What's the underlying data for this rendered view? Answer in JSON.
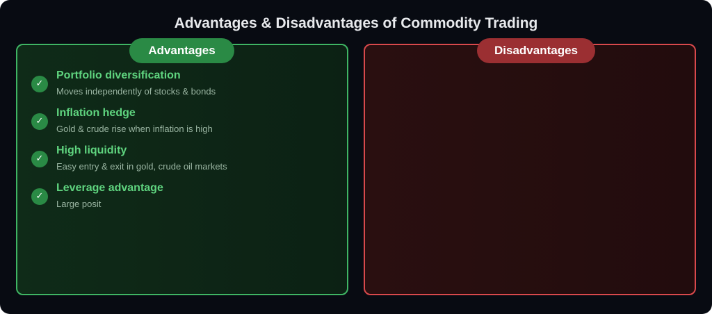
{
  "title": "Advantages & Disadvantages of Commodity Trading",
  "advantages": {
    "label": "Advantages",
    "items": [
      {
        "title": "Portfolio diversification",
        "description": "Moves independently of stocks & bonds"
      },
      {
        "title": "Inflation hedge",
        "description": "Gold & crude rise when inflation is high"
      },
      {
        "title": "High liquidity",
        "description": "Easy entry & exit in gold, crude oil markets"
      },
      {
        "title": "Leverage advantage",
        "description": "Large posit"
      }
    ]
  },
  "disadvantages": {
    "label": "Disadvantages",
    "items": []
  },
  "icons": {
    "advantage_item": "check-icon"
  },
  "colors": {
    "background": "#080b12",
    "advantage_accent": "#2a8a45",
    "advantage_border": "#3fb564",
    "advantage_text": "#5fd47f",
    "disadvantage_accent": "#9b2f32",
    "disadvantage_border": "#d9494c"
  }
}
